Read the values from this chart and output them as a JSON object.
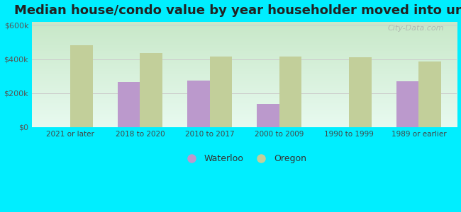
{
  "title": "Median house/condo value by year householder moved into unit",
  "categories": [
    "2021 or later",
    "2018 to 2020",
    "2010 to 2017",
    "2000 to 2009",
    "1990 to 1999",
    "1989 or earlier"
  ],
  "waterloo_values": [
    null,
    265000,
    275000,
    135000,
    null,
    270000
  ],
  "oregon_values": [
    480000,
    435000,
    415000,
    415000,
    410000,
    385000
  ],
  "waterloo_color": "#bb99cc",
  "oregon_color": "#c2cf9a",
  "background_top": "#d6f0d6",
  "background_bottom": "#e8faf0",
  "outer_background": "#00eeff",
  "ylim": [
    0,
    620000
  ],
  "yticks": [
    0,
    200000,
    400000,
    600000
  ],
  "ytick_labels": [
    "$0",
    "$200k",
    "$400k",
    "$600k"
  ],
  "title_fontsize": 13,
  "watermark": "City-Data.com"
}
